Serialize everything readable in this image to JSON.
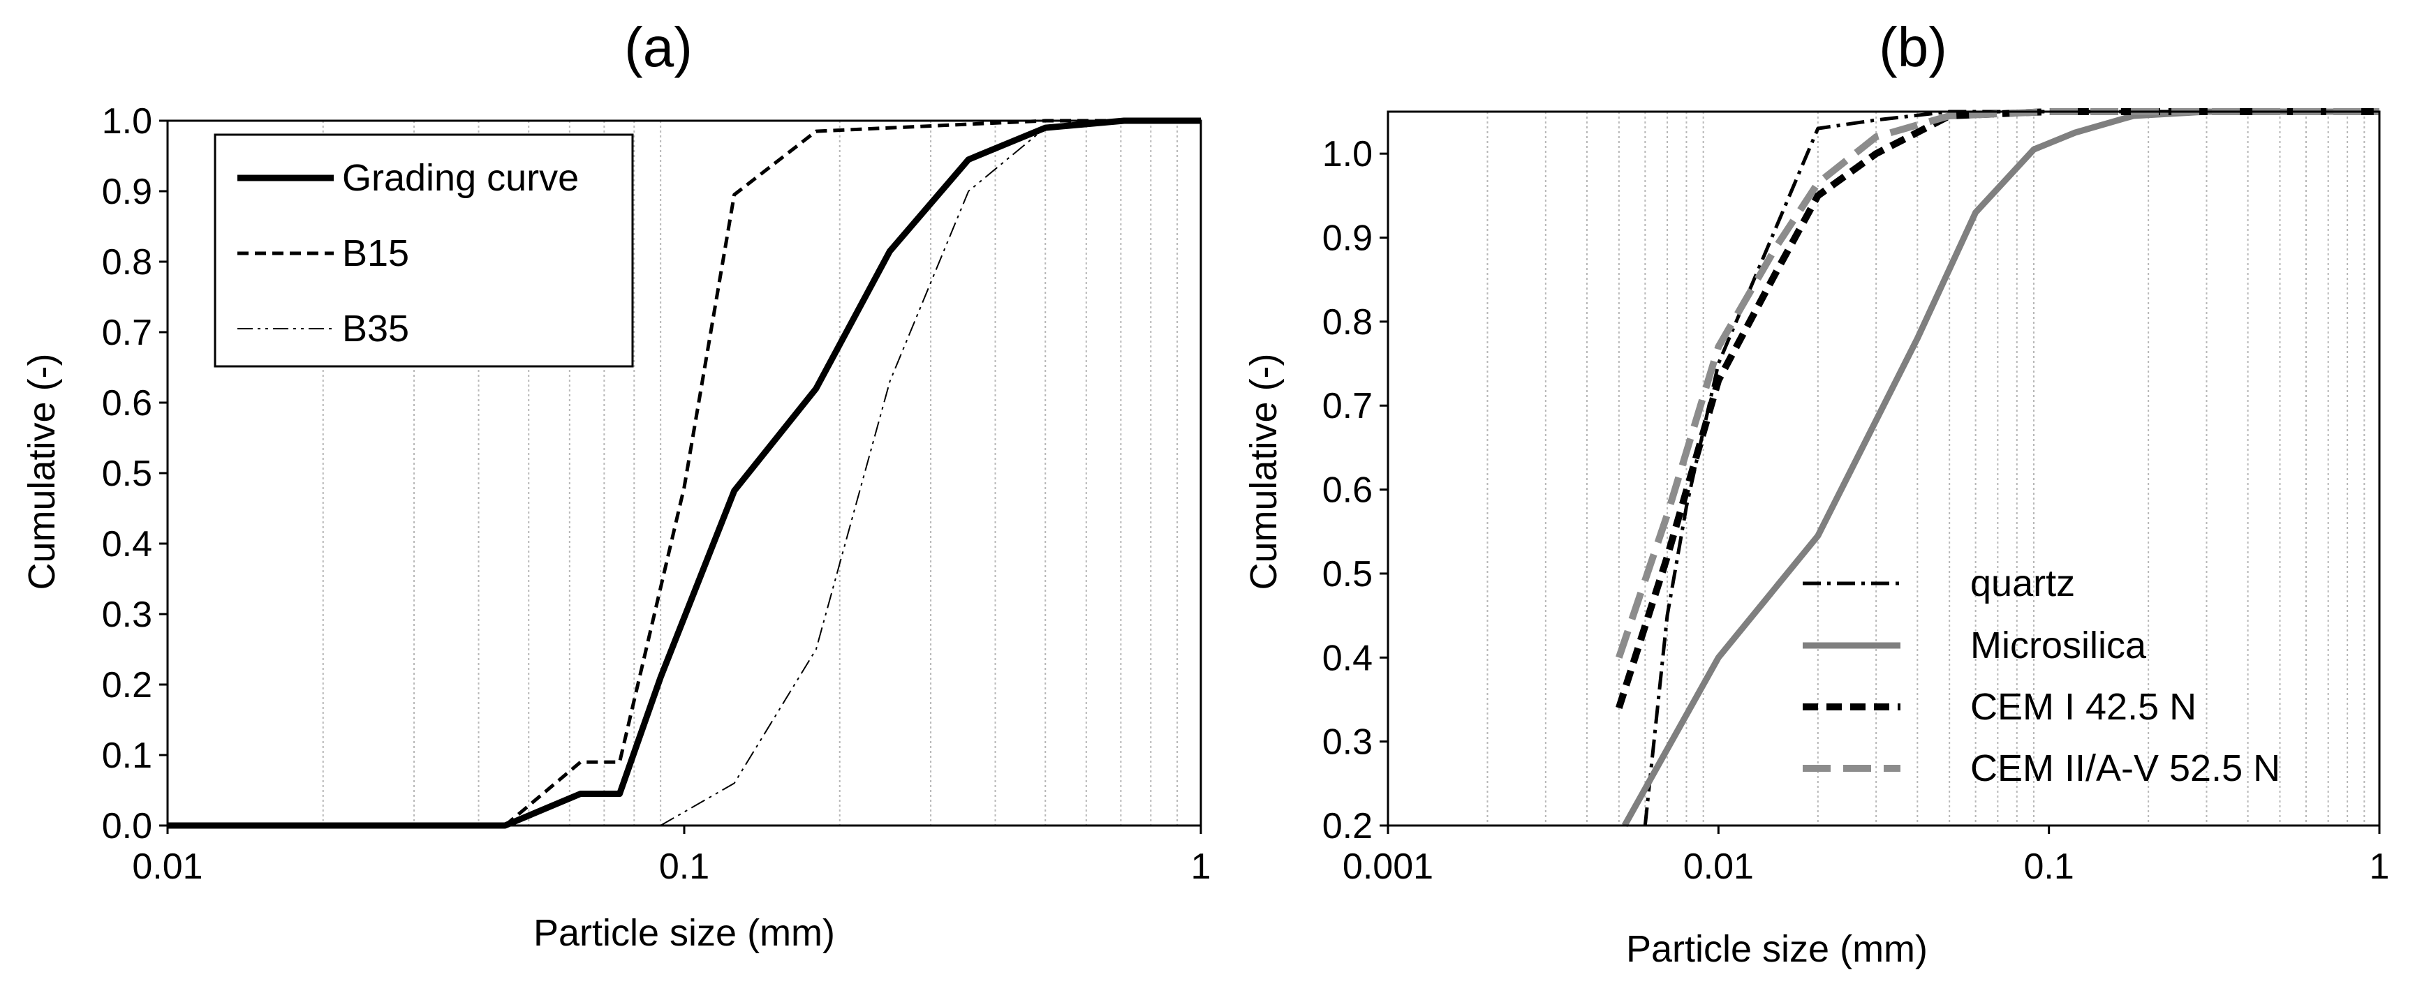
{
  "chart_data": [
    {
      "id": "a",
      "type": "line",
      "title": "(a)",
      "xlabel": "Particle size (mm)",
      "ylabel": "Cumulative (-)",
      "xscale": "log",
      "xlim": [
        0.01,
        1
      ],
      "ylim": [
        0,
        1
      ],
      "grid": "vertical-minor",
      "legend_position": "top-left",
      "x_ticks": [
        {
          "value": 0.01,
          "label": "0.01"
        },
        {
          "value": 0.1,
          "label": "0.1"
        },
        {
          "value": 1,
          "label": "1"
        }
      ],
      "y_ticks": [
        {
          "value": 0,
          "label": "0.0"
        },
        {
          "value": 0.1,
          "label": "0.1"
        },
        {
          "value": 0.2,
          "label": "0.2"
        },
        {
          "value": 0.3,
          "label": "0.3"
        },
        {
          "value": 0.4,
          "label": "0.4"
        },
        {
          "value": 0.5,
          "label": "0.5"
        },
        {
          "value": 0.6,
          "label": "0.6"
        },
        {
          "value": 0.7,
          "label": "0.7"
        },
        {
          "value": 0.8,
          "label": "0.8"
        },
        {
          "value": 0.9,
          "label": "0.9"
        },
        {
          "value": 1.0,
          "label": "1.0"
        }
      ],
      "series": [
        {
          "name": "Grading curve",
          "color": "#000000",
          "style": "solid-thick",
          "points": [
            [
              0.01,
              0
            ],
            [
              0.045,
              0
            ],
            [
              0.063,
              0.045
            ],
            [
              0.075,
              0.045
            ],
            [
              0.09,
              0.21
            ],
            [
              0.125,
              0.475
            ],
            [
              0.18,
              0.62
            ],
            [
              0.25,
              0.815
            ],
            [
              0.355,
              0.945
            ],
            [
              0.5,
              0.99
            ],
            [
              0.71,
              1
            ],
            [
              1,
              1
            ]
          ]
        },
        {
          "name": "B15",
          "color": "#000000",
          "style": "dashed",
          "points": [
            [
              0.045,
              0
            ],
            [
              0.063,
              0.09
            ],
            [
              0.075,
              0.09
            ],
            [
              0.1,
              0.48
            ],
            [
              0.125,
              0.895
            ],
            [
              0.18,
              0.985
            ],
            [
              0.355,
              0.995
            ],
            [
              0.5,
              1
            ],
            [
              1,
              1
            ]
          ]
        },
        {
          "name": "B35",
          "color": "#000000",
          "style": "dash-dot-dot-thin",
          "points": [
            [
              0.09,
              0
            ],
            [
              0.125,
              0.06
            ],
            [
              0.18,
              0.25
            ],
            [
              0.25,
              0.63
            ],
            [
              0.355,
              0.9
            ],
            [
              0.5,
              0.99
            ],
            [
              0.71,
              1
            ],
            [
              1,
              1
            ]
          ]
        }
      ]
    },
    {
      "id": "b",
      "type": "line",
      "title": "(b)",
      "xlabel": "Particle size (mm)",
      "ylabel": "Cumulative (-)",
      "xscale": "log",
      "xlim": [
        0.001,
        1
      ],
      "ylim": [
        0.2,
        1.05
      ],
      "grid": "vertical-minor",
      "legend_position": "bottom-right",
      "x_ticks": [
        {
          "value": 0.001,
          "label": "0.001"
        },
        {
          "value": 0.01,
          "label": "0.01"
        },
        {
          "value": 0.1,
          "label": "0.1"
        },
        {
          "value": 1,
          "label": "1"
        }
      ],
      "y_ticks": [
        {
          "value": 0.2,
          "label": "0.2"
        },
        {
          "value": 0.3,
          "label": "0.3"
        },
        {
          "value": 0.4,
          "label": "0.4"
        },
        {
          "value": 0.5,
          "label": "0.5"
        },
        {
          "value": 0.6,
          "label": "0.6"
        },
        {
          "value": 0.7,
          "label": "0.7"
        },
        {
          "value": 0.8,
          "label": "0.8"
        },
        {
          "value": 0.9,
          "label": "0.9"
        },
        {
          "value": 1.0,
          "label": "1.0"
        }
      ],
      "series": [
        {
          "name": "quartz",
          "color": "#000000",
          "style": "dash-dot",
          "points": [
            [
              0.006,
              0.2
            ],
            [
              0.007,
              0.45
            ],
            [
              0.008,
              0.58
            ],
            [
              0.009,
              0.67
            ],
            [
              0.01,
              0.75
            ],
            [
              0.02,
              1.03
            ],
            [
              0.03,
              1.04
            ],
            [
              0.05,
              1.05
            ],
            [
              1,
              1.05
            ]
          ]
        },
        {
          "name": "Microsilica",
          "color": "#7f7f7f",
          "style": "solid-thick",
          "points": [
            [
              0.0052,
              0.2
            ],
            [
              0.01,
              0.4
            ],
            [
              0.02,
              0.545
            ],
            [
              0.04,
              0.78
            ],
            [
              0.06,
              0.93
            ],
            [
              0.09,
              1.005
            ],
            [
              0.12,
              1.025
            ],
            [
              0.18,
              1.045
            ],
            [
              0.3,
              1.05
            ],
            [
              1,
              1.05
            ]
          ]
        },
        {
          "name": "CEM I 42.5 N",
          "color": "#000000",
          "style": "dashed-thick",
          "points": [
            [
              0.005,
              0.34
            ],
            [
              0.007,
              0.52
            ],
            [
              0.01,
              0.73
            ],
            [
              0.015,
              0.86
            ],
            [
              0.02,
              0.95
            ],
            [
              0.03,
              1.0
            ],
            [
              0.05,
              1.045
            ],
            [
              0.1,
              1.05
            ],
            [
              1,
              1.05
            ]
          ]
        },
        {
          "name": "CEM II/A-V 52.5 N",
          "color": "#8c8c8c",
          "style": "long-dashed-thick",
          "points": [
            [
              0.005,
              0.4
            ],
            [
              0.007,
              0.57
            ],
            [
              0.01,
              0.77
            ],
            [
              0.015,
              0.89
            ],
            [
              0.02,
              0.965
            ],
            [
              0.03,
              1.02
            ],
            [
              0.05,
              1.045
            ],
            [
              0.1,
              1.05
            ],
            [
              1,
              1.05
            ]
          ]
        }
      ]
    }
  ]
}
